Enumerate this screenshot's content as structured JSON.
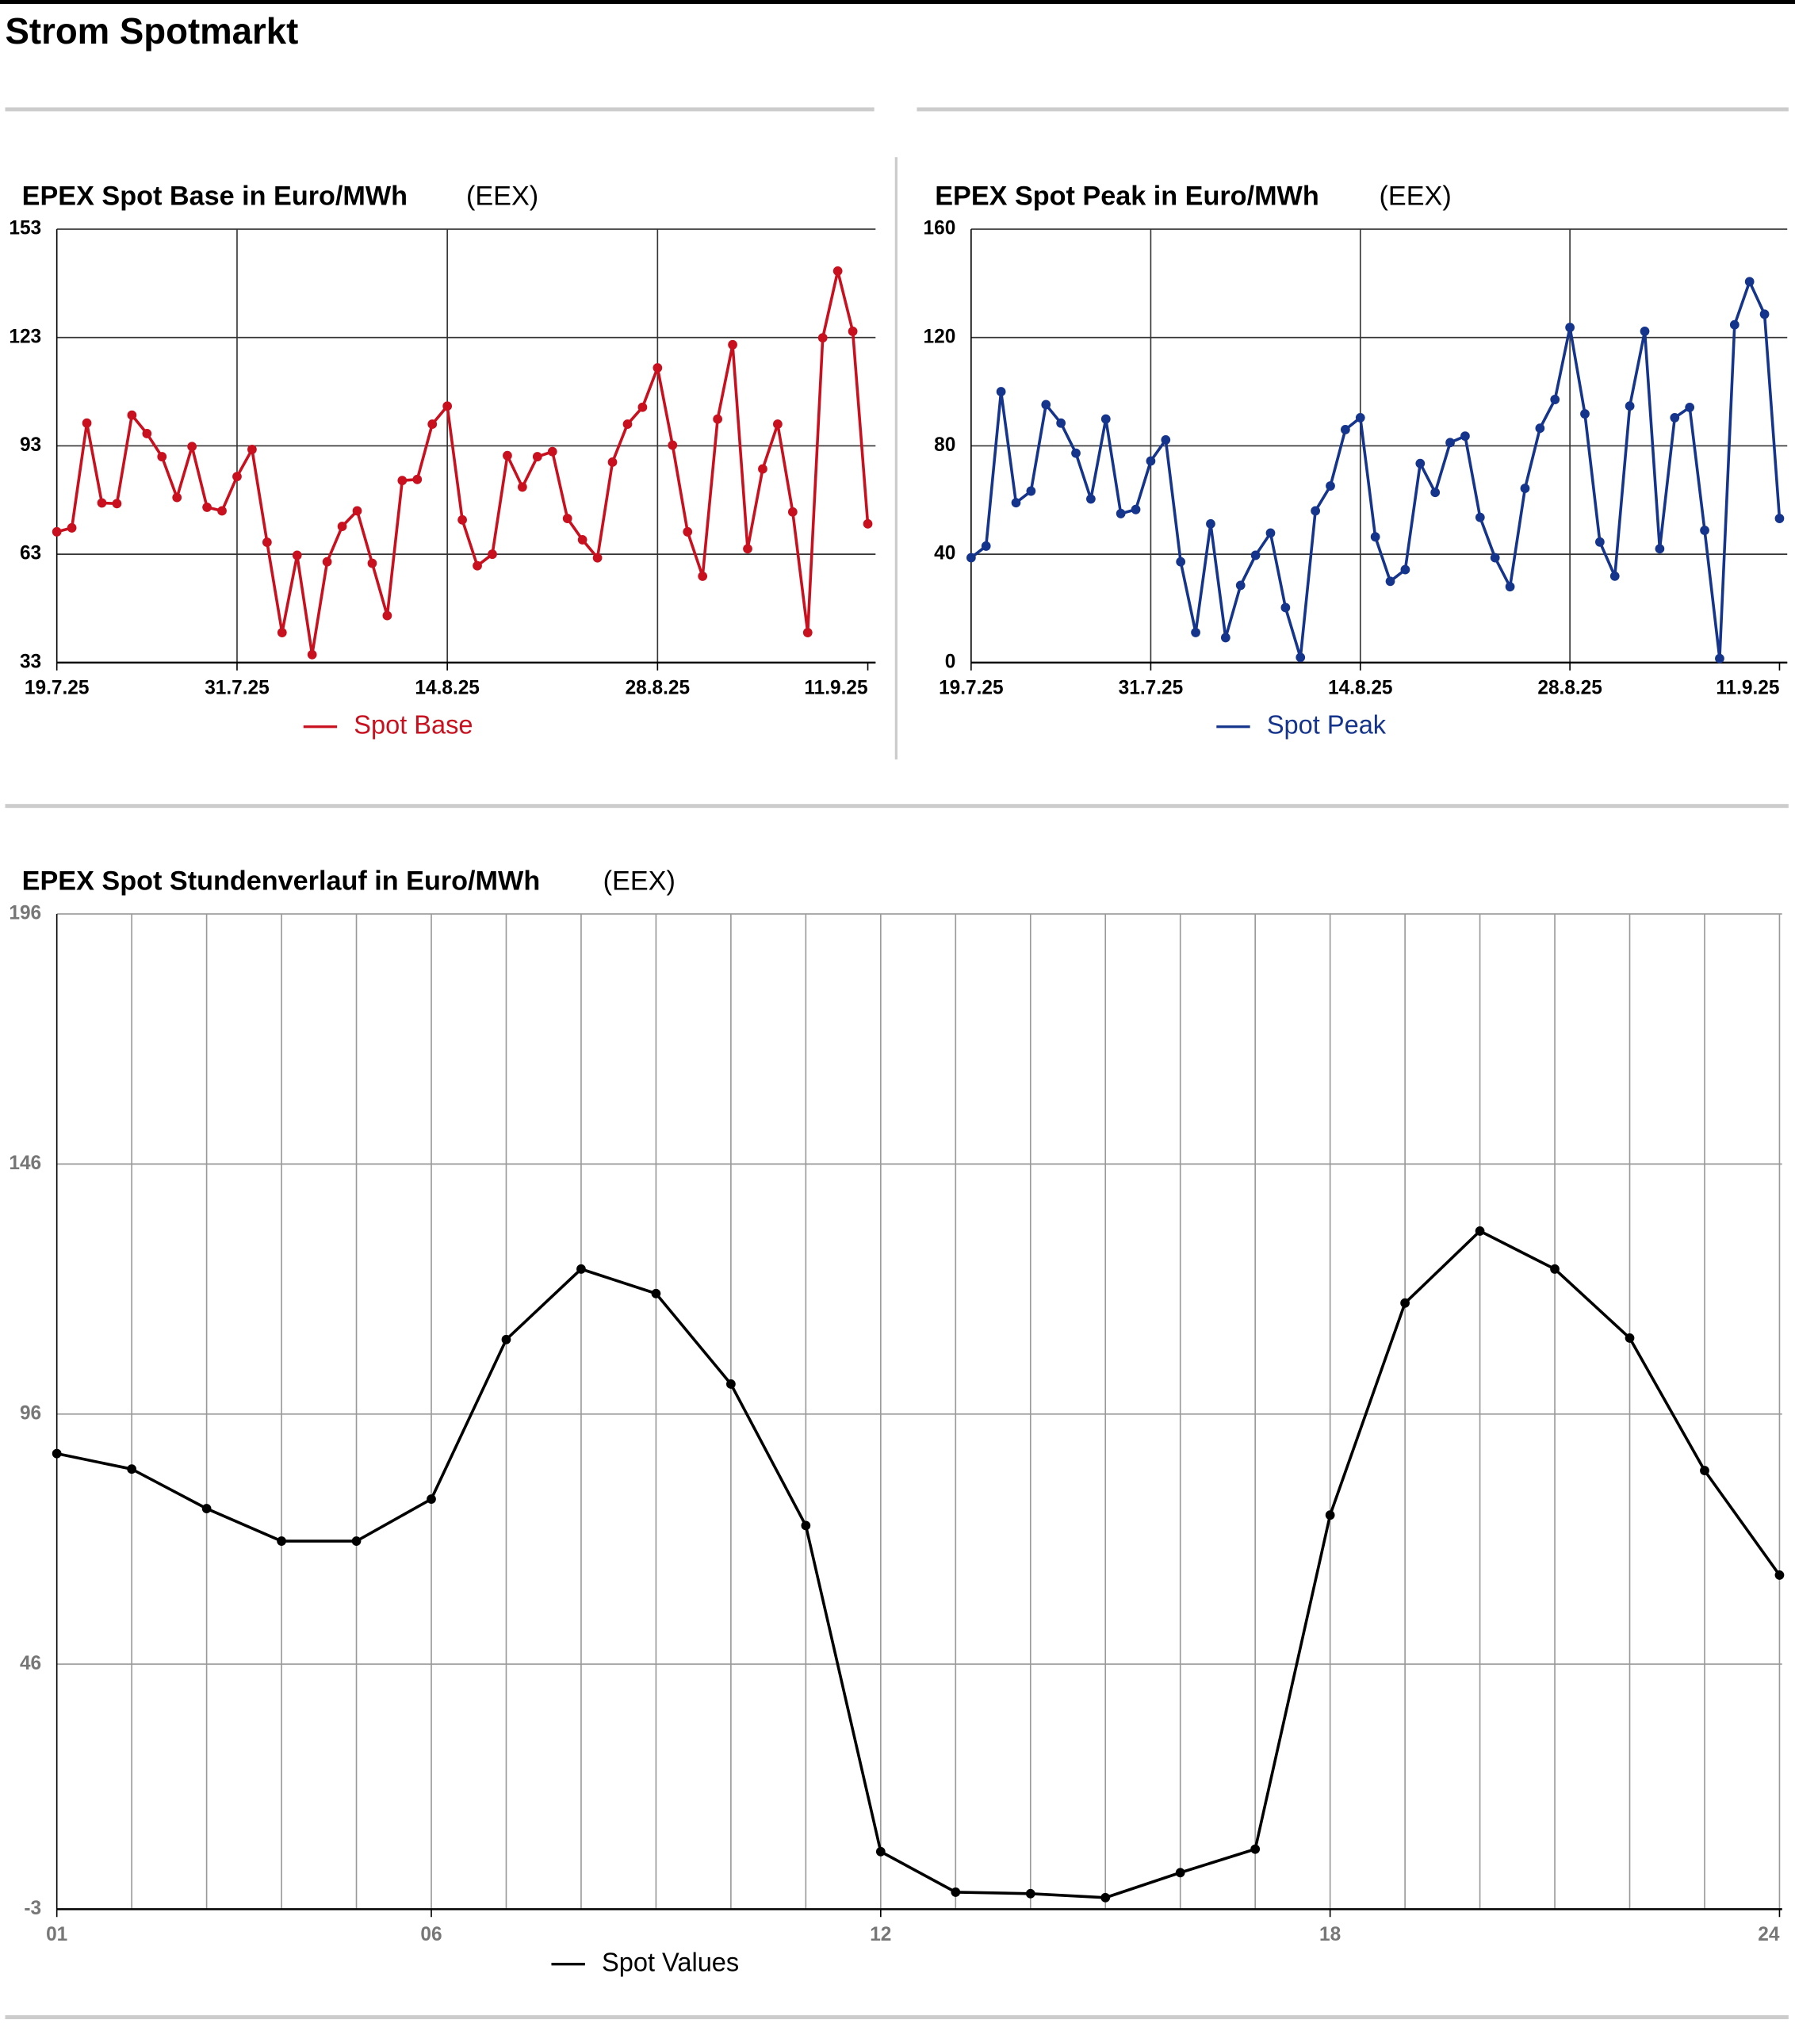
{
  "title": "Strom Spotmarkt",
  "chart_data": [
    {
      "type": "line",
      "title": "EPEX Spot Base in Euro/MWh",
      "source": "(EEX)",
      "categories": [
        "19.7.25",
        null,
        null,
        null,
        null,
        null,
        null,
        null,
        null,
        null,
        null,
        null,
        "31.7.25",
        null,
        null,
        null,
        null,
        null,
        null,
        null,
        null,
        null,
        null,
        null,
        null,
        null,
        "14.8.25",
        null,
        null,
        null,
        null,
        null,
        null,
        null,
        null,
        null,
        null,
        null,
        null,
        null,
        "28.8.25",
        null,
        null,
        null,
        null,
        null,
        null,
        null,
        null,
        null,
        null,
        null,
        null,
        null,
        "11.9.25"
      ],
      "series": [
        {
          "name": "Spot Base",
          "color": "#c8101e",
          "values": [
            69.2,
            70.3,
            99.3,
            77.2,
            77,
            101.5,
            96.4,
            90,
            78.7,
            92.8,
            76,
            75,
            84.5,
            92,
            66.3,
            41.3,
            62.7,
            35.2,
            60.9,
            70.7,
            75,
            60.5,
            46,
            83.4,
            83.7,
            99,
            104,
            72.5,
            59.8,
            63,
            90.3,
            81.6,
            90,
            91.4,
            72.9,
            67,
            62,
            88.5,
            99,
            103.7,
            114.6,
            93.2,
            69.2,
            56.9,
            100.4,
            121,
            64.5,
            86.6,
            99,
            74.7,
            41.3,
            122.9,
            141.4,
            124.7,
            71.4
          ]
        }
      ],
      "ylim": [
        33,
        153
      ],
      "yticks": [
        33,
        63,
        93,
        123,
        153
      ],
      "grid": true
    },
    {
      "type": "line",
      "title": "EPEX Spot Peak in Euro/MWh",
      "source": "(EEX)",
      "categories": [
        "19.7.25",
        null,
        null,
        null,
        null,
        null,
        null,
        null,
        null,
        null,
        null,
        null,
        "31.7.25",
        null,
        null,
        null,
        null,
        null,
        null,
        null,
        null,
        null,
        null,
        null,
        null,
        null,
        "14.8.25",
        null,
        null,
        null,
        null,
        null,
        null,
        null,
        null,
        null,
        null,
        null,
        null,
        null,
        "28.8.25",
        null,
        null,
        null,
        null,
        null,
        null,
        null,
        null,
        null,
        null,
        null,
        null,
        null,
        "11.9.25"
      ],
      "series": [
        {
          "name": "Spot Peak",
          "color": "#15348c",
          "values": [
            38.7,
            43,
            100,
            59,
            63.3,
            95.2,
            88.4,
            77.3,
            60.4,
            89.9,
            55,
            56.5,
            74.4,
            82.2,
            37.2,
            11.1,
            51.2,
            9.2,
            28.5,
            39.6,
            47.8,
            20.3,
            1.9,
            56,
            65.2,
            86,
            90.4,
            46.4,
            30,
            34.3,
            73.5,
            62.8,
            81.2,
            83.6,
            53.6,
            38.7,
            28,
            64.3,
            86.5,
            97.1,
            123.7,
            91.8,
            44.5,
            31.9,
            94.7,
            122.3,
            42,
            90.4,
            94.2,
            48.8,
            1.5,
            124.7,
            140.6,
            128.6,
            53.2
          ]
        }
      ],
      "ylim": [
        0,
        160
      ],
      "yticks": [
        0,
        40,
        80,
        120,
        160
      ],
      "grid": true
    },
    {
      "type": "line",
      "title": "EPEX Spot Stundenverlauf in Euro/MWh",
      "source": "(EEX)",
      "categories": [
        "01",
        null,
        null,
        null,
        null,
        "06",
        null,
        null,
        null,
        null,
        null,
        "12",
        null,
        null,
        null,
        null,
        null,
        "18",
        null,
        null,
        null,
        null,
        null,
        "24"
      ],
      "series": [
        {
          "name": "Spot Values",
          "color": "#000000",
          "values": [
            88.1,
            85,
            77.1,
            70.6,
            70.6,
            79,
            110.9,
            125,
            120.1,
            102,
            73.7,
            8.5,
            0.4,
            0.1,
            -0.7,
            4.3,
            9,
            75.8,
            118.2,
            132.6,
            125,
            111.2,
            84.7,
            63.8
          ]
        }
      ],
      "ylim": [
        -3,
        196
      ],
      "yticks": [
        -3,
        46,
        96,
        146,
        196
      ],
      "grid": true
    }
  ]
}
